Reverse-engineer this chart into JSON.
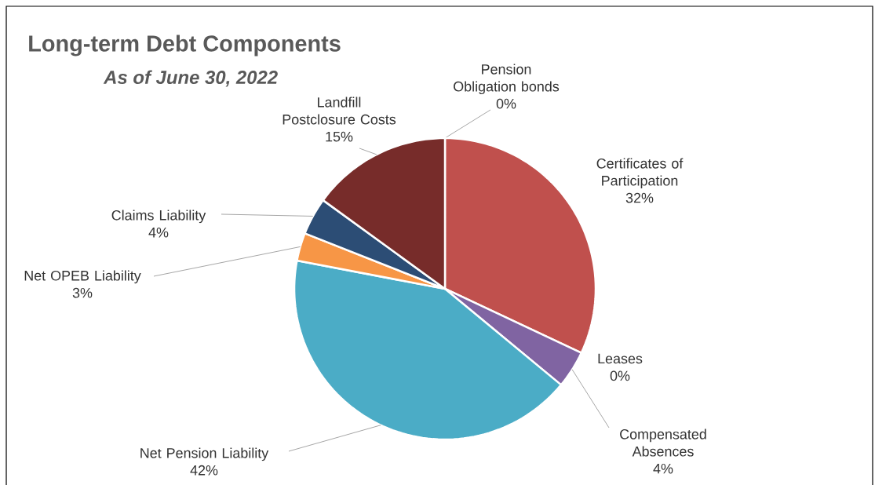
{
  "chart_data": {
    "type": "pie",
    "title": "Long-term Debt Components",
    "subtitle": "As of June 30, 2022",
    "categories": [
      "Pension Obligation bonds",
      "Certificates of Participation",
      "Leases",
      "Compensated Absences",
      "Net Pension Liability",
      "Net OPEB Liability",
      "Claims Liability",
      "Landfill Postclosure Costs"
    ],
    "values": [
      0,
      32,
      0,
      4,
      42,
      3,
      4,
      15
    ],
    "value_labels": [
      "0%",
      "32%",
      "0%",
      "4%",
      "42%",
      "3%",
      "4%",
      "15%"
    ],
    "colors": [
      "#9bbb59",
      "#c0504d",
      "#4f81bd",
      "#8064a2",
      "#4bacc6",
      "#f79646",
      "#2c4d75",
      "#772c2a"
    ]
  }
}
